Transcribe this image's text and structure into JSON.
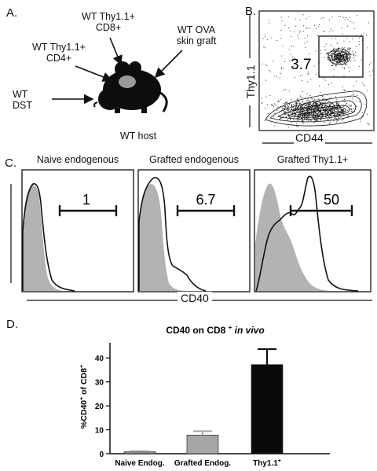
{
  "panels": {
    "a": "A.",
    "b": "B.",
    "c": "C.",
    "d": "D."
  },
  "panel_a": {
    "cd8_label": [
      "WT Thy1.1+",
      "CD8+"
    ],
    "cd4_label": [
      "WT Thy1.1+",
      "CD4+"
    ],
    "graft_label": [
      "WT OVA",
      "skin graft"
    ],
    "dst_label": [
      "WT",
      "DST"
    ],
    "host_label": "WT host"
  },
  "panel_b": {
    "gate_value": "3.7",
    "y_axis": "Thy1.1",
    "x_axis": "CD44"
  },
  "panel_c": {
    "titles": [
      "Naive endogenous",
      "Grafted endogenous",
      "Grafted Thy1.1+"
    ],
    "gate_values": [
      "1",
      "6.7",
      "50"
    ],
    "x_axis": "CD40"
  },
  "chart_data": {
    "type": "bar",
    "title": "CD40 on CD8 + in vivo",
    "title_parts": {
      "main": "CD40 on CD8",
      "sup": "+",
      "italic": " in vivo"
    },
    "categories": [
      "Naive Endog.",
      "Grafted Endog.",
      "Thy1.1+"
    ],
    "category_labels": [
      {
        "main": "Naive Endog.",
        "sup": ""
      },
      {
        "main": "Grafted Endog.",
        "sup": ""
      },
      {
        "main": "Thy1.1",
        "sup": "+"
      }
    ],
    "values": [
      0.8,
      7.8,
      37.2
    ],
    "errors": [
      0.2,
      1.6,
      6.5
    ],
    "bar_colors": [
      "#8c8c8c",
      "#a6a6a6",
      "#0a0a0a"
    ],
    "ylabel": "%CD40+ of CD8+",
    "ylabel_parts": {
      "a": "%CD40",
      "b": "+",
      "c": " of CD8",
      "d": "+"
    },
    "ylim": [
      0,
      45
    ],
    "yticks": [
      0,
      10,
      20,
      30,
      40
    ]
  }
}
